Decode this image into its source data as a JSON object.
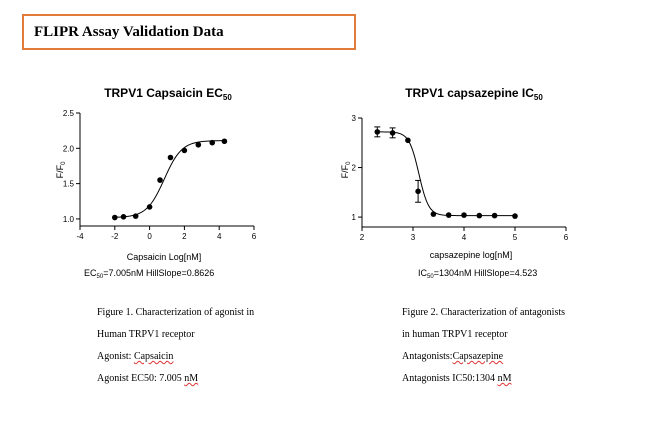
{
  "header": {
    "title": "FLIPR Assay Validation Data"
  },
  "chart_data": [
    {
      "type": "scatter",
      "title": "TRPV1 Capsaicin EC",
      "title_sub": "50",
      "xlabel": "Capsaicin  Log[nM]",
      "ylabel": "F/F",
      "ylabel_sub": "0",
      "xlim": [
        -4,
        6
      ],
      "ylim": [
        0.9,
        2.5
      ],
      "xticks": [
        -4,
        -2,
        0,
        2,
        4,
        6
      ],
      "yticks": [
        1.0,
        1.5,
        2.0,
        2.5
      ],
      "ytick_labels": [
        "1.0",
        "1.5",
        "2.0",
        "2.5"
      ],
      "x": [
        -2.0,
        -1.5,
        -0.8,
        0.0,
        0.6,
        1.2,
        2.0,
        2.8,
        3.6,
        4.3
      ],
      "y": [
        1.02,
        1.03,
        1.04,
        1.17,
        1.55,
        1.87,
        1.97,
        2.05,
        2.08,
        2.1
      ],
      "fit": {
        "bottom": 1.02,
        "top": 2.11,
        "logEC50": 0.845,
        "hill": 0.8626
      },
      "annotation": {
        "prefix": "EC",
        "sub": "50",
        "text": "=7.005nM  HillSlope=0.8626"
      }
    },
    {
      "type": "scatter",
      "title": "TRPV1 capsazepine IC",
      "title_sub": "50",
      "xlabel": "capsazepine  log[nM]",
      "ylabel": "F/F",
      "ylabel_sub": "0",
      "xlim": [
        2,
        6
      ],
      "ylim": [
        0.8,
        3.0
      ],
      "xticks": [
        2,
        3,
        4,
        5,
        6
      ],
      "yticks": [
        1,
        2,
        3
      ],
      "ytick_labels": [
        "1",
        "2",
        "3"
      ],
      "x": [
        2.3,
        2.6,
        2.9,
        3.1,
        3.4,
        3.7,
        4.0,
        4.3,
        4.6,
        5.0
      ],
      "y": [
        2.72,
        2.7,
        2.55,
        1.52,
        1.06,
        1.04,
        1.04,
        1.03,
        1.03,
        1.02
      ],
      "err": [
        0.1,
        0.1,
        0.0,
        0.22,
        0.0,
        0.0,
        0.0,
        0.0,
        0.0,
        0.0
      ],
      "fit": {
        "bottom": 1.03,
        "top": 2.72,
        "logIC50": 3.115,
        "hill": 4.523
      },
      "annotation": {
        "prefix": "IC",
        "sub": "50",
        "text": "=1304nM  HillSlope=4.523"
      }
    }
  ],
  "captions": [
    {
      "line1": "Figure 1. Characterization of agonist in",
      "line2": "Human TRPV1 receptor",
      "line3_label": "Agonist: ",
      "line3_value": "Capsaicin",
      "line4_label": "Agonist EC50: 7.005 ",
      "line4_value": "nM"
    },
    {
      "line1": "Figure 2. Characterization of antagonists",
      "line2": "in human TRPV1 receptor",
      "line3_label": "Antagonists:",
      "line3_value": "Capsazepine",
      "line4_label": "Antagonists IC50:1304 ",
      "line4_value": "nM"
    }
  ]
}
